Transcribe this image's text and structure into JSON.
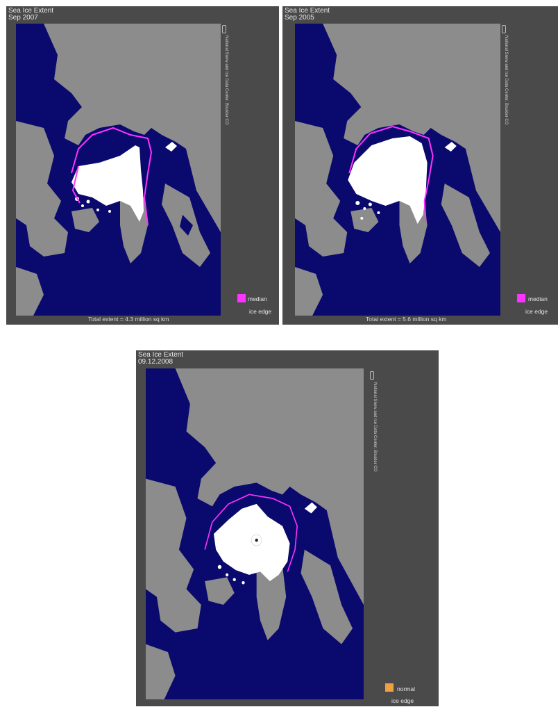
{
  "panels": [
    {
      "title_line1": "Sea Ice Extent",
      "title_line2": "Sep 2007",
      "legend_line1": "median",
      "legend_line2": "ice edge",
      "legend_color": "#ff33ff",
      "total": "Total extent = 4.3 million sq km",
      "credit": "National Snow and Ice Data Center, Boulder CO"
    },
    {
      "title_line1": "Sea Ice Extent",
      "title_line2": "Sep 2005",
      "legend_line1": "median",
      "legend_line2": "ice edge",
      "legend_color": "#ff33ff",
      "total": "Total extent = 5.6 million sq km",
      "credit": "National Snow and Ice Data Center, Boulder CO"
    },
    {
      "title_line1": "Sea Ice Extent",
      "title_line2": "09.12.2008",
      "legend_line1": "normal",
      "legend_line2": "ice edge",
      "legend_color": "#f0a040",
      "credit": "National Snow and Ice Data Center, Boulder CO"
    }
  ],
  "colors": {
    "ocean": "#0a0a6e",
    "land": "#8c8c8c",
    "ice": "#ffffff",
    "panel_bg": "#4a4a4a",
    "median_edge": "#ff33ff"
  }
}
